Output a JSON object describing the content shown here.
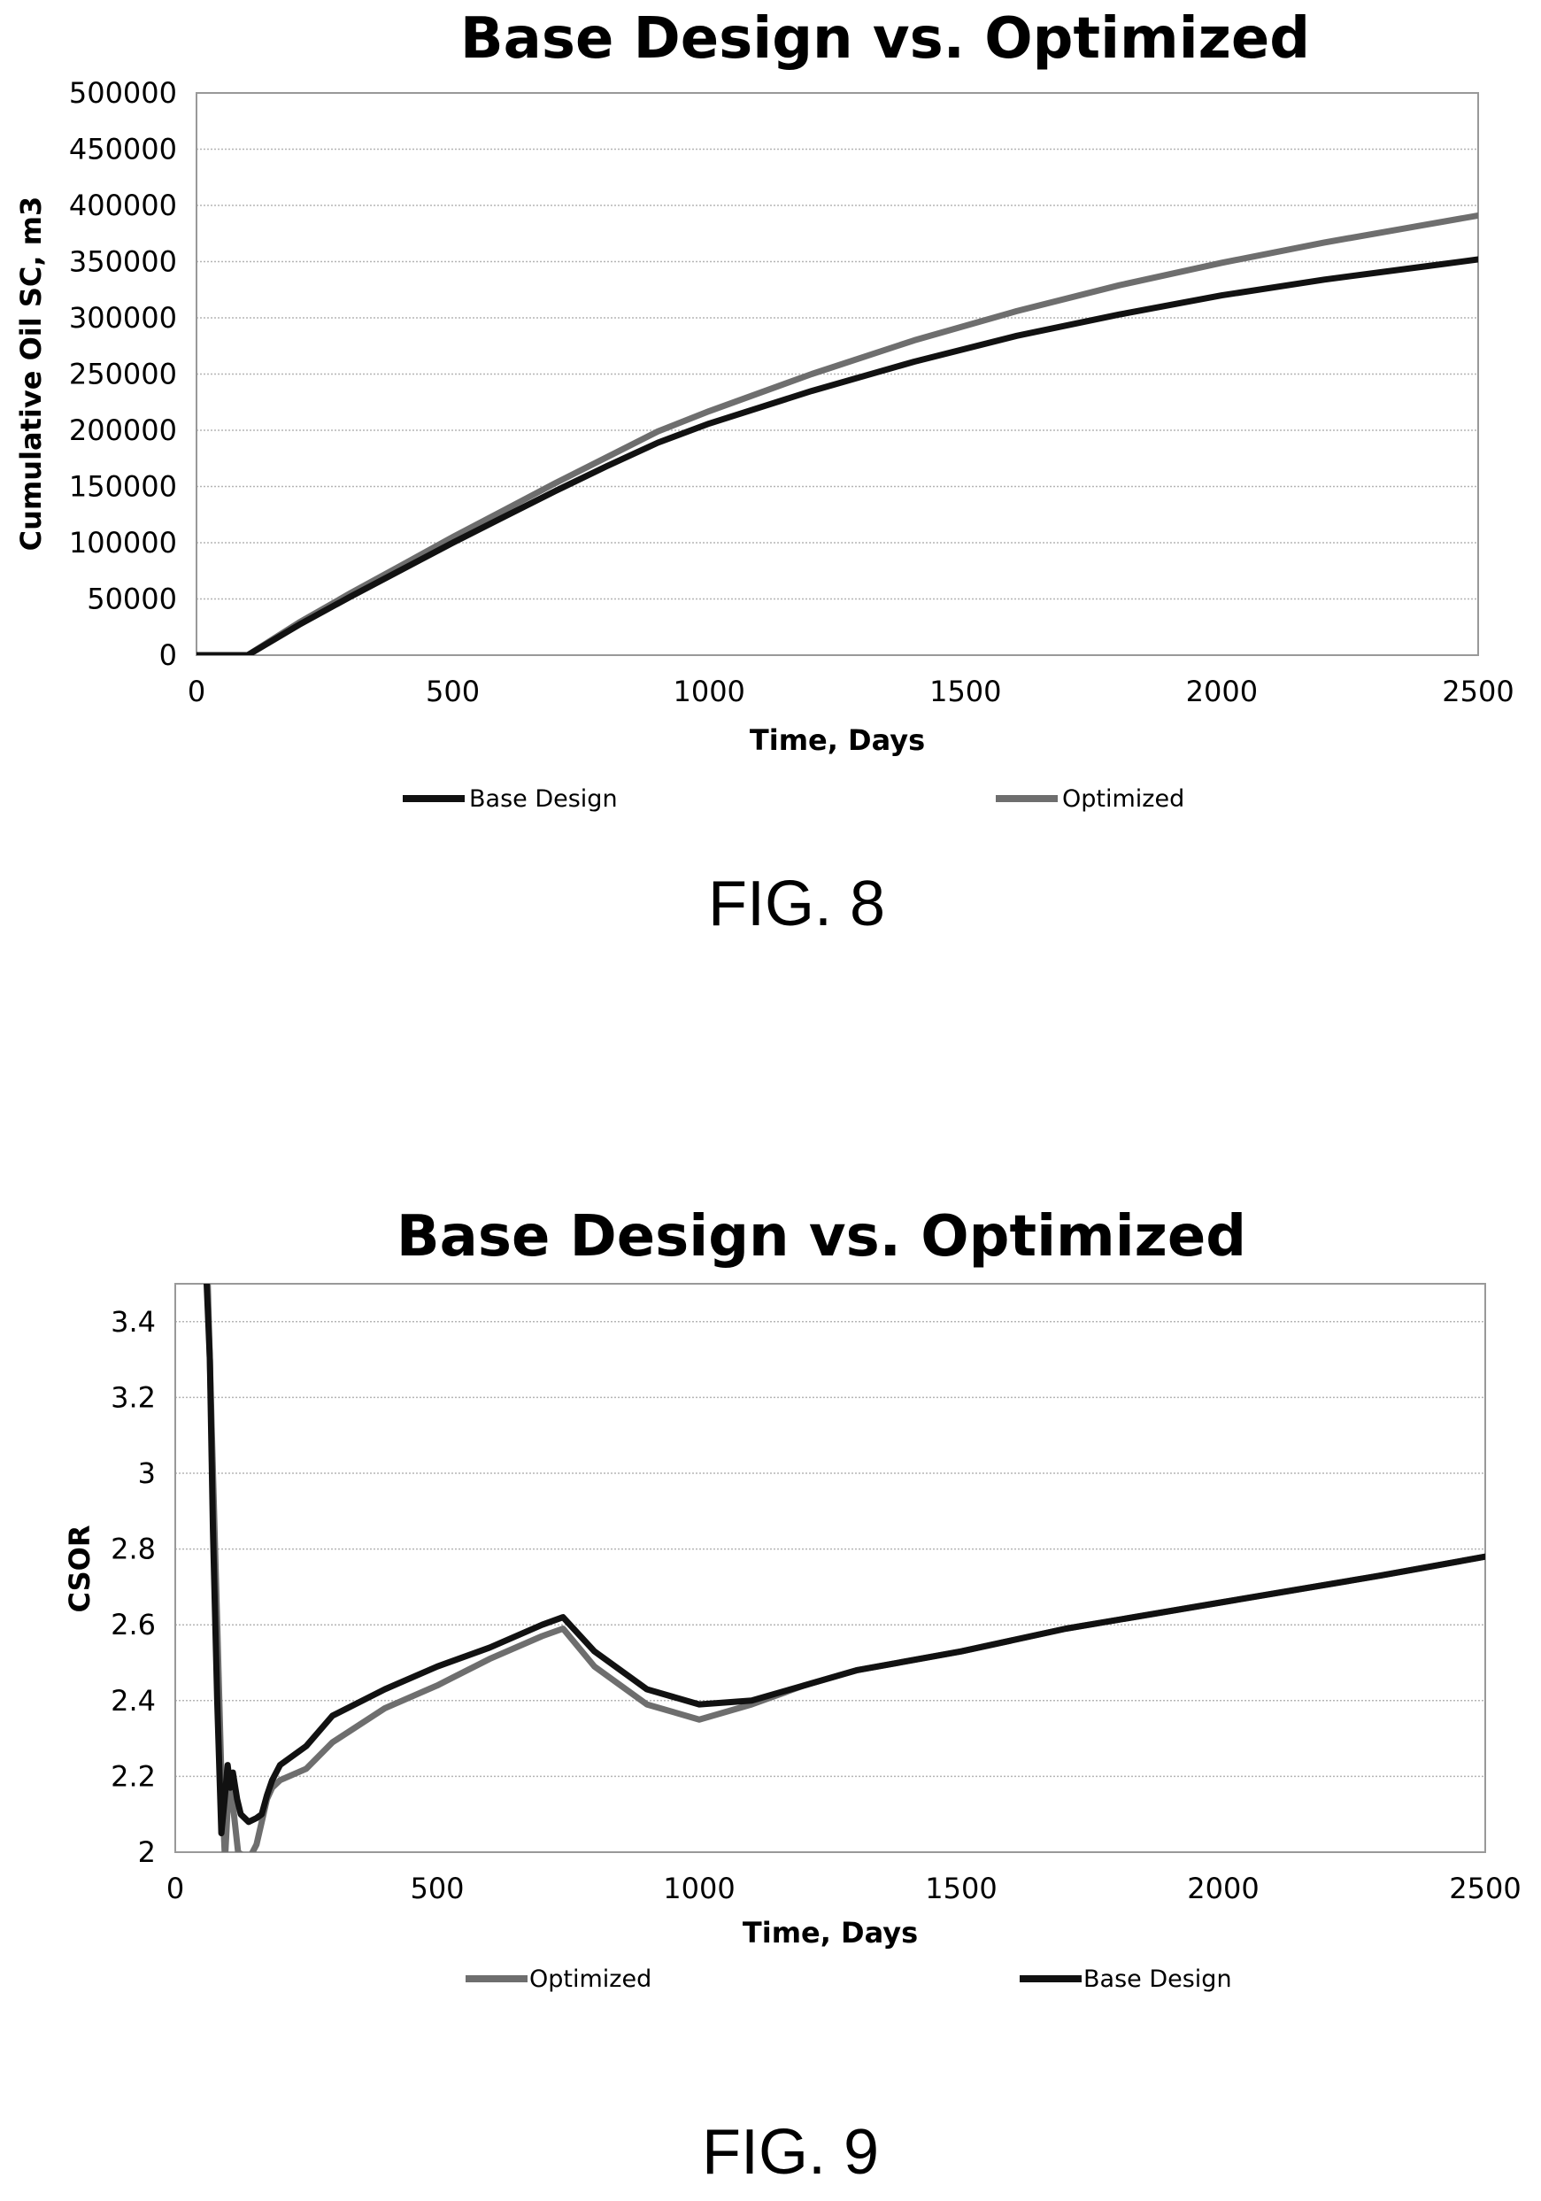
{
  "figures": [
    {
      "label": "FIG. 8"
    },
    {
      "label": "FIG. 9"
    }
  ],
  "chart_data": [
    {
      "type": "line",
      "title": "Base Design vs. Optimized",
      "xlabel": "Time, Days",
      "ylabel": "Cumulative Oil SC, m3",
      "xlim": [
        0,
        2500
      ],
      "ylim": [
        0,
        500000
      ],
      "xticks": [
        0,
        500,
        1000,
        1500,
        2000,
        2500
      ],
      "yticks": [
        0,
        50000,
        100000,
        150000,
        200000,
        250000,
        300000,
        350000,
        400000,
        450000,
        500000
      ],
      "grid": true,
      "legend_position": "bottom",
      "series": [
        {
          "name": "Base Design",
          "color": "#111111",
          "x": [
            0,
            100,
            200,
            300,
            400,
            500,
            600,
            700,
            800,
            900,
            1000,
            1200,
            1400,
            1600,
            1800,
            2000,
            2200,
            2400,
            2500
          ],
          "y": [
            0,
            0,
            27000,
            52000,
            76000,
            100000,
            123000,
            146000,
            168000,
            189000,
            206000,
            235000,
            261000,
            284000,
            303000,
            320000,
            334000,
            346000,
            352000
          ]
        },
        {
          "name": "Optimized",
          "color": "#6e6e6e",
          "x": [
            0,
            100,
            200,
            300,
            400,
            500,
            600,
            700,
            800,
            900,
            1000,
            1200,
            1400,
            1600,
            1800,
            2000,
            2200,
            2400,
            2500
          ],
          "y": [
            0,
            0,
            29000,
            55000,
            80000,
            105000,
            129000,
            153000,
            176000,
            199000,
            217000,
            250000,
            280000,
            306000,
            329000,
            349000,
            367000,
            383000,
            391000
          ]
        }
      ]
    },
    {
      "type": "line",
      "title": "Base Design vs. Optimized",
      "xlabel": "Time, Days",
      "ylabel": "CSOR",
      "xlim": [
        0,
        2500
      ],
      "ylim": [
        2,
        3.5
      ],
      "xticks": [
        0,
        500,
        1000,
        1500,
        2000,
        2500
      ],
      "yticks": [
        2,
        2.2,
        2.4,
        2.6,
        2.8,
        3,
        3.2,
        3.4
      ],
      "grid": true,
      "legend_position": "bottom",
      "series": [
        {
          "name": "Optimized",
          "color": "#6e6e6e",
          "x": [
            62,
            70,
            80,
            88,
            95,
            100,
            105,
            112,
            120,
            140,
            155,
            165,
            175,
            185,
            200,
            250,
            300,
            400,
            500,
            600,
            700,
            740,
            800,
            900,
            1000,
            1100,
            1200,
            1300,
            1500,
            1700,
            2000,
            2300,
            2500
          ],
          "y": [
            3.5,
            3.1,
            2.6,
            2.2,
            1.98,
            2.12,
            2.18,
            2.1,
            2.0,
            1.98,
            2.02,
            2.08,
            2.14,
            2.17,
            2.19,
            2.22,
            2.29,
            2.38,
            2.44,
            2.51,
            2.57,
            2.59,
            2.49,
            2.39,
            2.35,
            2.39,
            2.44,
            2.48,
            2.53,
            2.59,
            2.66,
            2.73,
            2.78
          ]
        },
        {
          "name": "Base Design",
          "color": "#111111",
          "x": [
            60,
            66,
            72,
            80,
            88,
            95,
            100,
            105,
            110,
            118,
            125,
            140,
            155,
            165,
            175,
            185,
            200,
            250,
            300,
            400,
            500,
            600,
            700,
            740,
            800,
            900,
            1000,
            1100,
            1200,
            1300,
            1500,
            1700,
            2000,
            2300,
            2500
          ],
          "y": [
            3.5,
            3.3,
            2.85,
            2.4,
            2.05,
            2.15,
            2.23,
            2.17,
            2.21,
            2.14,
            2.1,
            2.08,
            2.09,
            2.1,
            2.15,
            2.19,
            2.23,
            2.28,
            2.36,
            2.43,
            2.49,
            2.54,
            2.6,
            2.62,
            2.53,
            2.43,
            2.39,
            2.4,
            2.44,
            2.48,
            2.53,
            2.59,
            2.66,
            2.73,
            2.78
          ]
        }
      ]
    }
  ]
}
